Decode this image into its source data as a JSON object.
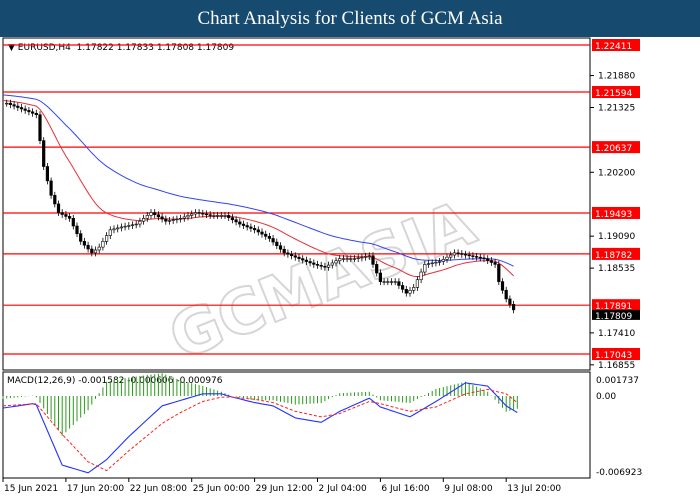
{
  "title": "Chart Analysis for Clients of GCM Asia",
  "watermark": "GCMASIA",
  "chart_data": [
    {
      "type": "line",
      "panel": "price",
      "header": {
        "symbol": "EURUSD,H4",
        "ohlc": "1.17822 1.17833 1.17808 1.17809"
      },
      "ylim": [
        1.16855,
        1.22411
      ],
      "y_ticks": [
        "1.21880",
        "1.21325",
        "1.20200",
        "1.19090",
        "1.18535",
        "1.17410",
        "1.16855"
      ],
      "y_tick_values": [
        1.2188,
        1.21325,
        1.202,
        1.1909,
        1.18535,
        1.1741,
        1.16855
      ],
      "current_price": {
        "label": "1.17809",
        "value": 1.17809
      },
      "levels": [
        {
          "label": "1.22411",
          "value": 1.22411
        },
        {
          "label": "1.21594",
          "value": 1.21594
        },
        {
          "label": "1.20637",
          "value": 1.20637
        },
        {
          "label": "1.19493",
          "value": 1.19493
        },
        {
          "label": "1.18782",
          "value": 1.18782
        },
        {
          "label": "1.17891",
          "value": 1.17891
        },
        {
          "label": "1.17043",
          "value": 1.17043
        }
      ],
      "x_ticks": [
        {
          "bar": 0,
          "label": "15 Jun 2021"
        },
        {
          "bar": 17,
          "label": "17 Jun 20:00"
        },
        {
          "bar": 34,
          "label": "22 Jun 08:00"
        },
        {
          "bar": 51,
          "label": "25 Jun 00:00"
        },
        {
          "bar": 68,
          "label": "29 Jun 12:00"
        },
        {
          "bar": 85,
          "label": "2 Jul 04:00"
        },
        {
          "bar": 102,
          "label": "6 Jul 16:00"
        },
        {
          "bar": 119,
          "label": "9 Jul 08:00"
        },
        {
          "bar": 136,
          "label": "13 Jul 20:00"
        }
      ],
      "close": [
        [
          1,
          1.214
        ],
        [
          5,
          1.213
        ],
        [
          9,
          1.212
        ],
        [
          11,
          1.203
        ],
        [
          13,
          1.198
        ],
        [
          15,
          1.195
        ],
        [
          18,
          1.194
        ],
        [
          21,
          1.19
        ],
        [
          24,
          1.188
        ],
        [
          26,
          1.189
        ],
        [
          29,
          1.192
        ],
        [
          32,
          1.1925
        ],
        [
          36,
          1.193
        ],
        [
          40,
          1.195
        ],
        [
          44,
          1.1935
        ],
        [
          48,
          1.194
        ],
        [
          52,
          1.195
        ],
        [
          56,
          1.1945
        ],
        [
          60,
          1.1945
        ],
        [
          64,
          1.193
        ],
        [
          68,
          1.192
        ],
        [
          72,
          1.1905
        ],
        [
          76,
          1.188
        ],
        [
          80,
          1.187
        ],
        [
          84,
          1.186
        ],
        [
          87,
          1.1855
        ],
        [
          91,
          1.187
        ],
        [
          95,
          1.187
        ],
        [
          99,
          1.1875
        ],
        [
          102,
          1.183
        ],
        [
          106,
          1.183
        ],
        [
          109,
          1.181
        ],
        [
          111,
          1.182
        ],
        [
          114,
          1.186
        ],
        [
          118,
          1.1865
        ],
        [
          122,
          1.188
        ],
        [
          126,
          1.1875
        ],
        [
          130,
          1.187
        ],
        [
          133,
          1.186
        ],
        [
          134,
          1.183
        ],
        [
          136,
          1.18
        ],
        [
          138,
          1.1781
        ]
      ],
      "colors": {
        "price": "#000000",
        "ma_fast": "#e8303a",
        "ma_slow": "#3344ee",
        "levels": "#ff0000"
      }
    },
    {
      "type": "line",
      "panel": "macd",
      "header": "MACD(12,26,9) -0.001582 -0.000606 -0.000976",
      "ylim": [
        -0.006923,
        0.001737
      ],
      "y_ticks": [
        "0.001737",
        "0.00",
        "-0.006923"
      ],
      "y_tick_values": [
        0.001737,
        0,
        -0.006923
      ],
      "series": [
        {
          "key": "main",
          "color": "#2233ff",
          "points": [
            [
              0,
              -0.0011
            ],
            [
              8,
              -0.0007
            ],
            [
              9,
              -0.0008
            ],
            [
              16,
              -0.0063
            ],
            [
              23,
              -0.007
            ],
            [
              28,
              -0.0058
            ],
            [
              34,
              -0.0037
            ],
            [
              43,
              -0.0009
            ],
            [
              48,
              -0.0004
            ],
            [
              54,
              0.0002
            ],
            [
              59,
              0.0002
            ],
            [
              62,
              -0.0001
            ],
            [
              68,
              -0.0006
            ],
            [
              73,
              -0.0009
            ],
            [
              79,
              -0.002
            ],
            [
              86,
              -0.0024
            ],
            [
              91,
              -0.0014
            ],
            [
              99,
              -0.0002
            ],
            [
              102,
              -0.001
            ],
            [
              110,
              -0.0019
            ],
            [
              117,
              -0.0005
            ],
            [
              125,
              0.0012
            ],
            [
              131,
              0.0009
            ],
            [
              136,
              -0.0009
            ],
            [
              139,
              -0.0015
            ]
          ]
        },
        {
          "key": "signal",
          "color": "#ff2222",
          "points": [
            [
              0,
              -0.0009
            ],
            [
              9,
              -0.0007
            ],
            [
              16,
              -0.0035
            ],
            [
              23,
              -0.006
            ],
            [
              28,
              -0.0068
            ],
            [
              34,
              -0.005
            ],
            [
              43,
              -0.0025
            ],
            [
              48,
              -0.0015
            ],
            [
              54,
              -0.0005
            ],
            [
              59,
              -0.0001
            ],
            [
              62,
              -0.0001
            ],
            [
              68,
              -0.0003
            ],
            [
              73,
              -0.0006
            ],
            [
              79,
              -0.0014
            ],
            [
              86,
              -0.0019
            ],
            [
              91,
              -0.0016
            ],
            [
              99,
              -0.0005
            ],
            [
              102,
              -0.0007
            ],
            [
              110,
              -0.0014
            ],
            [
              117,
              -0.001
            ],
            [
              125,
              0.0002
            ],
            [
              131,
              0.0006
            ],
            [
              136,
              0.0002
            ],
            [
              139,
              -0.0006
            ]
          ]
        }
      ],
      "histogram_color": "#2a9a1a"
    }
  ]
}
